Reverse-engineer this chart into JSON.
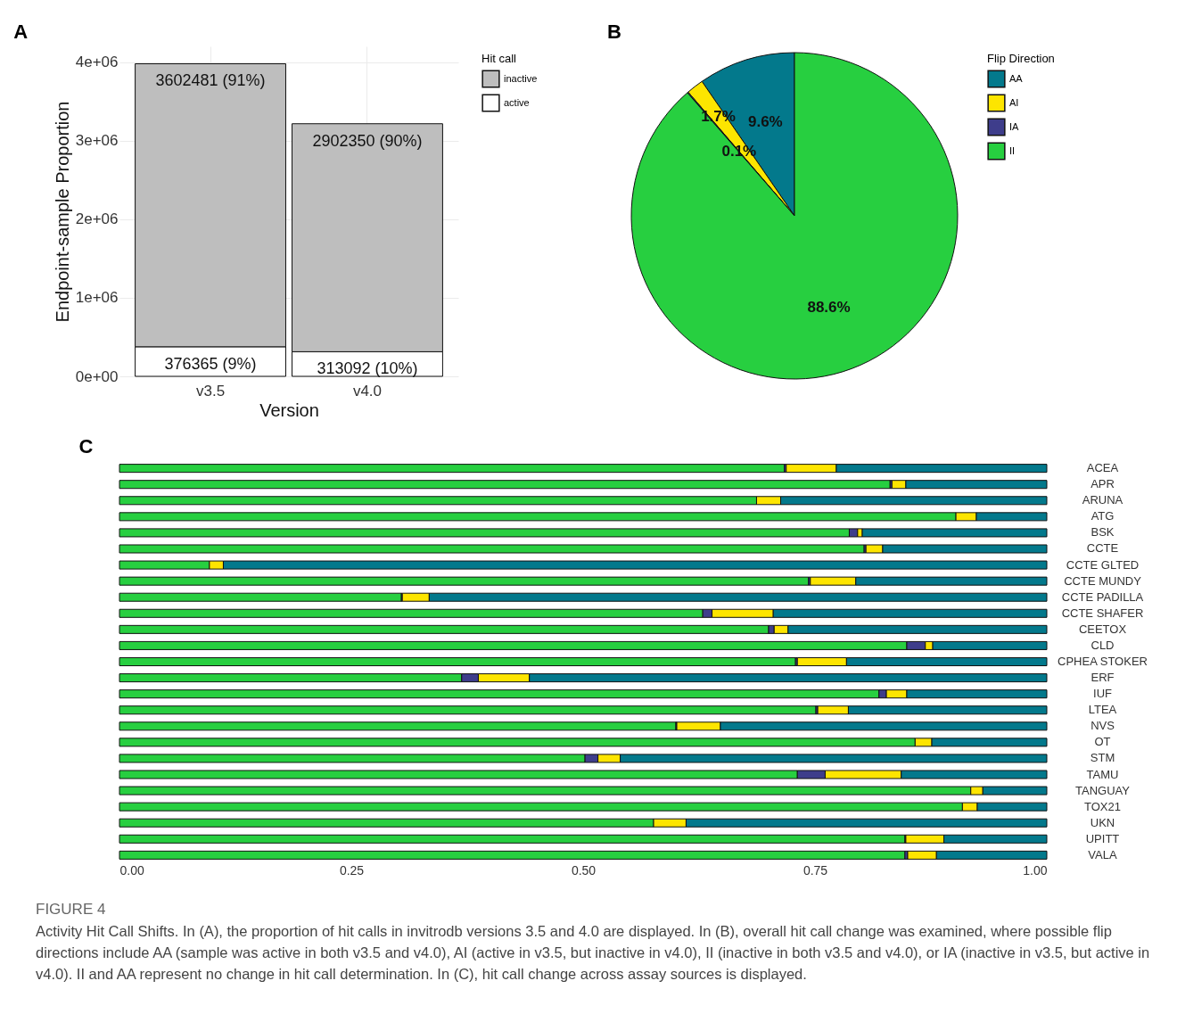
{
  "chart_data": [
    {
      "type": "bar",
      "title": "A",
      "stacked": true,
      "categories": [
        "v3.5",
        "v4.0"
      ],
      "xlabel": "Version",
      "ylabel": "Endpoint-sample Proportion",
      "legend_title": "Hit call",
      "legend": "right",
      "grid": true,
      "ylim": [
        0,
        4200000
      ],
      "yticks": [
        {
          "value": 0,
          "label": "0e+00"
        },
        {
          "value": 1000000,
          "label": "1e+06"
        },
        {
          "value": 2000000,
          "label": "2e+06"
        },
        {
          "value": 3000000,
          "label": "3e+06"
        },
        {
          "value": 4000000,
          "label": "4e+06"
        }
      ],
      "series": [
        {
          "name": "active",
          "color": "#ffffff",
          "values": [
            376365,
            313092
          ],
          "value_labels": [
            "376365 (9%)",
            "313092 (10%)"
          ]
        },
        {
          "name": "inactive",
          "color": "#bebebe",
          "values": [
            3602481,
            2902350
          ],
          "value_labels": [
            "3602481 (91%)",
            "2902350 (90%)"
          ]
        }
      ]
    },
    {
      "type": "pie",
      "title": "B",
      "categories": [
        "AA",
        "AI",
        "IA",
        "II"
      ],
      "values": [
        9.6,
        1.7,
        0.1,
        88.6
      ],
      "colors": [
        "#03798c",
        "#fde500",
        "#3e3d8b",
        "#27cf40"
      ],
      "value_labels": [
        "9.6%",
        "1.7%",
        "0.1%",
        "88.6%"
      ],
      "legend_title": "Flip Direction",
      "legend": "right"
    },
    {
      "type": "bar",
      "title": "C",
      "stacked": true,
      "orientation": "horizontal",
      "xlim": [
        0,
        1
      ],
      "xticks": [
        {
          "value": 0,
          "label": "0.00"
        },
        {
          "value": 0.25,
          "label": "0.25"
        },
        {
          "value": 0.5,
          "label": "0.50"
        },
        {
          "value": 0.75,
          "label": "0.75"
        },
        {
          "value": 1,
          "label": "1.00"
        }
      ],
      "categories": [
        "ACEA",
        "APR",
        "ARUNA",
        "ATG",
        "BSK",
        "CCTE",
        "CCTE GLTED",
        "CCTE MUNDY",
        "CCTE PADILLA",
        "CCTE SHAFER",
        "CEETOX",
        "CLD",
        "CPHEA STOKER",
        "ERF",
        "IUF",
        "LTEA",
        "NVS",
        "OT",
        "STM",
        "TAMU",
        "TANGUAY",
        "TOX21",
        "UKN",
        "UPITT",
        "VALA"
      ],
      "series": [
        {
          "color": "#27cf40",
          "values": [
            0.717,
            0.831,
            0.687,
            0.902,
            0.787,
            0.803,
            0.097,
            0.743,
            0.304,
            0.629,
            0.7,
            0.849,
            0.729,
            0.369,
            0.819,
            0.751,
            0.6,
            0.858,
            0.502,
            0.731,
            0.918,
            0.909,
            0.576,
            0.847,
            0.847
          ]
        },
        {
          "color": "#3e3d8b",
          "values": [
            0.002,
            0.002,
            0,
            0,
            0.009,
            0.002,
            0,
            0.002,
            0.001,
            0.01,
            0.006,
            0.02,
            0.002,
            0.018,
            0.008,
            0.002,
            0.001,
            0,
            0.014,
            0.03,
            0,
            0,
            0,
            0.001,
            0.003
          ]
        },
        {
          "color": "#fde500",
          "values": [
            0.054,
            0.015,
            0.026,
            0.022,
            0.005,
            0.018,
            0.015,
            0.049,
            0.029,
            0.066,
            0.015,
            0.008,
            0.053,
            0.055,
            0.022,
            0.033,
            0.047,
            0.018,
            0.024,
            0.082,
            0.013,
            0.016,
            0.035,
            0.041,
            0.031
          ]
        },
        {
          "color": "#03798c",
          "values": [
            0.227,
            0.152,
            0.287,
            0.076,
            0.199,
            0.177,
            0.888,
            0.206,
            0.666,
            0.295,
            0.279,
            0.123,
            0.216,
            0.558,
            0.151,
            0.214,
            0.352,
            0.124,
            0.46,
            0.157,
            0.069,
            0.075,
            0.389,
            0.111,
            0.119
          ]
        }
      ],
      "annotations": [
        "FIGURE 4",
        "Activity Hit Call Shifts. In (A), the proportion of hit calls in invitrodb versions 3.5 and 4.0 are displayed. In (B), overall hit call change was examined, where possible flip directions include AA (sample was active in both v3.5 and v4.0), AI (active in v3.5, but inactive in v4.0), II (inactive in both v3.5 and v4.0), or IA (inactive in v3.5, but active in v4.0). II and AA represent no change in hit call determination. In (C), hit call change across assay sources is displayed."
      ]
    }
  ]
}
